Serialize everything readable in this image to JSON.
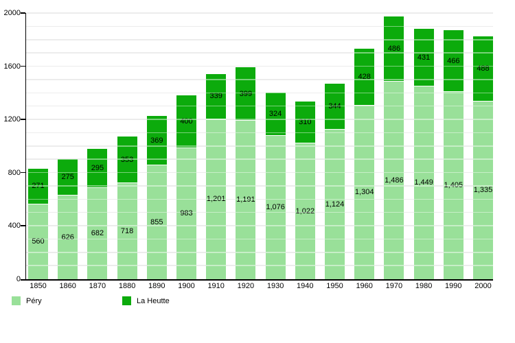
{
  "chart_data": {
    "type": "bar",
    "stacked": true,
    "categories": [
      "1850",
      "1860",
      "1870",
      "1880",
      "1890",
      "1900",
      "1910",
      "1920",
      "1930",
      "1940",
      "1950",
      "1960",
      "1970",
      "1980",
      "1990",
      "2000"
    ],
    "series": [
      {
        "name": "Péry",
        "color": "#99e099",
        "values": [
          560,
          626,
          682,
          718,
          855,
          983,
          1201,
          1191,
          1076,
          1022,
          1124,
          1304,
          1486,
          1449,
          1405,
          1335
        ],
        "labels": [
          "560",
          "626",
          "682",
          "718",
          "855",
          "983",
          "1,201",
          "1,191",
          "1,076",
          "1,022",
          "1,124",
          "1,304",
          "1,486",
          "1,449",
          "1,405",
          "1,335"
        ]
      },
      {
        "name": "La Heutte",
        "color": "#0cab0c",
        "values": [
          271,
          275,
          295,
          353,
          369,
          400,
          339,
          399,
          324,
          310,
          344,
          428,
          486,
          431,
          466,
          488
        ],
        "labels": [
          "271",
          "275",
          "295",
          "353",
          "369",
          "400",
          "339",
          "399",
          "324",
          "310",
          "344",
          "428",
          "486",
          "431",
          "466",
          "488"
        ]
      }
    ],
    "xlabel": "",
    "ylabel": "",
    "ylim": [
      0,
      2000
    ],
    "yticks": [
      0,
      400,
      800,
      1200,
      1600,
      2000
    ],
    "ytick_labels": [
      "0",
      "400",
      "800",
      "1200",
      "1600",
      "2000"
    ],
    "grid": true,
    "grid_step": 100,
    "grid_color": "#dcdcdc",
    "legend_position": "bottom-left",
    "label_color": "#000000"
  }
}
